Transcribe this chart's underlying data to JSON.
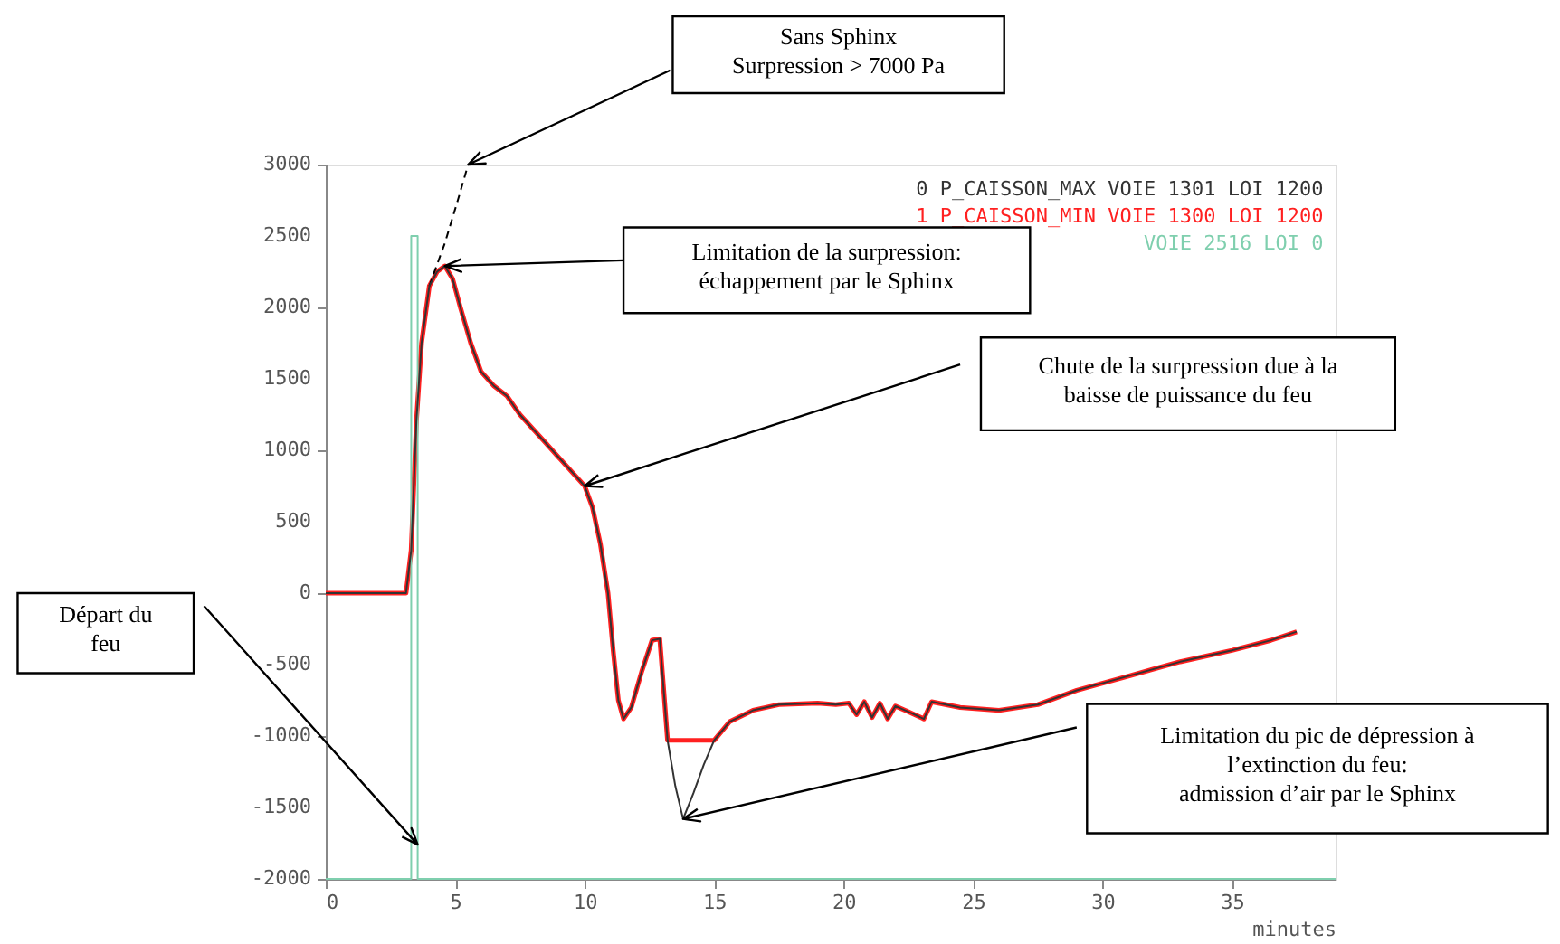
{
  "chart_data": {
    "type": "line",
    "xlabel": "minutes",
    "xlim": [
      0,
      39
    ],
    "xticks": [
      0,
      5,
      10,
      15,
      20,
      25,
      30,
      35
    ],
    "ylim": [
      -2000,
      3000
    ],
    "yticks": [
      -2000,
      -1500,
      -1000,
      -500,
      0,
      500,
      1000,
      1500,
      2000,
      2500,
      3000
    ],
    "grid": false,
    "legend": "top right",
    "line_style": "solid",
    "series": [
      {
        "name": "0 P_CAISSON_MAX VOIE 1301 LOI 1200",
        "color": "#333333",
        "x": [
          0,
          3.1,
          3.3,
          3.5,
          3.7,
          4.0,
          4.3,
          4.6,
          4.9,
          5.2,
          5.6,
          6.0,
          6.5,
          7.0,
          7.5,
          8.0,
          8.5,
          9.0,
          9.5,
          10.0,
          10.3,
          10.6,
          10.9,
          11.1,
          11.3,
          11.5,
          11.8,
          12.2,
          12.6,
          12.9,
          13.2,
          13.5,
          13.8,
          14.2,
          14.6,
          15.0,
          15.6,
          16.5,
          17.5,
          19.0,
          19.7,
          20.2,
          20.5,
          20.8,
          21.1,
          21.4,
          21.7,
          22.0,
          22.5,
          23.1,
          23.4,
          24.5,
          26.0,
          27.5,
          29.0,
          31.0,
          33.0,
          35.0,
          36.5,
          37.5
        ],
        "values": [
          0,
          0,
          300,
          1200,
          1750,
          2150,
          2250,
          2290,
          2200,
          2000,
          1750,
          1550,
          1450,
          1380,
          1250,
          1150,
          1050,
          950,
          850,
          750,
          600,
          350,
          0,
          -400,
          -750,
          -880,
          -800,
          -550,
          -330,
          -320,
          -1030,
          -1350,
          -1580,
          -1400,
          -1200,
          -1030,
          -900,
          -820,
          -780,
          -770,
          -780,
          -770,
          -850,
          -760,
          -870,
          -770,
          -880,
          -790,
          -830,
          -880,
          -760,
          -800,
          -820,
          -780,
          -680,
          -580,
          -480,
          -400,
          -330,
          -270
        ]
      },
      {
        "name": "1 P_CAISSON_MIN VOIE 1300 LOI 1200",
        "color": "#ff2020",
        "x": [
          0,
          3.1,
          3.3,
          3.5,
          3.7,
          4.0,
          4.3,
          4.6,
          4.9,
          5.2,
          5.6,
          6.0,
          6.5,
          7.0,
          7.5,
          8.0,
          8.5,
          9.0,
          9.5,
          10.0,
          10.3,
          10.6,
          10.9,
          11.1,
          11.3,
          11.5,
          11.8,
          12.2,
          12.6,
          12.9,
          13.2,
          15.0,
          15.6,
          16.5,
          17.5,
          19.0,
          19.7,
          20.2,
          20.5,
          20.8,
          21.1,
          21.4,
          21.7,
          22.0,
          22.5,
          23.1,
          23.4,
          24.5,
          26.0,
          27.5,
          29.0,
          31.0,
          33.0,
          35.0,
          36.5,
          37.5
        ],
        "values": [
          0,
          0,
          300,
          1200,
          1750,
          2150,
          2250,
          2290,
          2200,
          2000,
          1750,
          1550,
          1450,
          1380,
          1250,
          1150,
          1050,
          950,
          850,
          750,
          600,
          350,
          0,
          -400,
          -750,
          -880,
          -800,
          -550,
          -330,
          -320,
          -1030,
          -1030,
          -900,
          -820,
          -780,
          -770,
          -780,
          -770,
          -850,
          -760,
          -870,
          -770,
          -880,
          -790,
          -830,
          -880,
          -760,
          -800,
          -820,
          -780,
          -680,
          -580,
          -480,
          -400,
          -330,
          -270
        ]
      },
      {
        "name": "VOIE 2516 LOI 0",
        "color": "#7fcfae",
        "x": [
          0,
          3.3,
          3.3,
          3.55,
          3.55,
          39
        ],
        "values": [
          -2000,
          -2000,
          2500,
          2500,
          -2000,
          -2000
        ]
      },
      {
        "color": "#000000",
        "line_style": "dashed",
        "x": [
          4.0,
          4.6,
          5.1,
          5.5
        ],
        "values": [
          2150,
          2450,
          2750,
          3000
        ]
      }
    ],
    "annotations": [
      "Sans Sphinx\nSurpression  > 7000 Pa",
      "Limitation de la surpression:\néchappement par le Sphinx",
      "Chute de la surpression due à la\nbaisse de puissance du feu",
      "Départ du\nfeu",
      "Limitation du pic de dépression à\nl’extinction du feu:\nadmission d’air par le Sphinx"
    ]
  }
}
